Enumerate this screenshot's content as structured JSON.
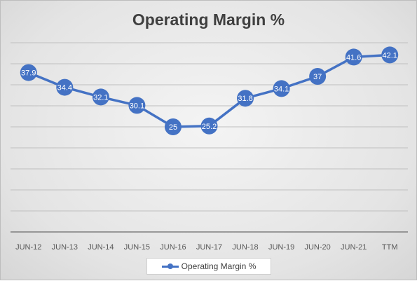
{
  "chart_data": {
    "type": "line",
    "title": "Operating Margin %",
    "categories": [
      "JUN-12",
      "JUN-13",
      "JUN-14",
      "JUN-15",
      "JUN-16",
      "JUN-17",
      "JUN-18",
      "JUN-19",
      "JUN-20",
      "JUN-21",
      "TTM"
    ],
    "series": [
      {
        "name": "Operating Margin %",
        "values": [
          37.9,
          34.4,
          32.1,
          30.1,
          25,
          25.2,
          31.8,
          34.1,
          37,
          41.6,
          42.1
        ],
        "color": "#4472c4"
      }
    ],
    "ylim": [
      0,
      45
    ],
    "y_tick_step": 5,
    "y_tick_labels_shown": false,
    "data_labels": true,
    "grid": true,
    "legend": "bottom"
  }
}
